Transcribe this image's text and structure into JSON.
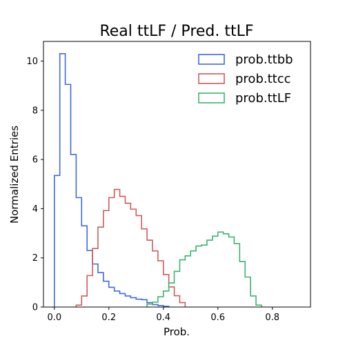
{
  "chart_data": {
    "type": "histogram",
    "title": "Real ttLF / Pred. ttLF",
    "xlabel": "Prob.",
    "ylabel": "Normalized Entries",
    "xlim": [
      -0.04,
      0.94
    ],
    "ylim": [
      0,
      10.8
    ],
    "xticks": [
      0.0,
      0.2,
      0.4,
      0.6,
      0.8
    ],
    "xtick_labels": [
      "0.0",
      "0.2",
      "0.4",
      "0.6",
      "0.8"
    ],
    "yticks": [
      0,
      2,
      4,
      6,
      8,
      10
    ],
    "ytick_labels": [
      "0",
      "2",
      "4",
      "6",
      "8",
      "10"
    ],
    "bin_width": 0.02,
    "grid": false,
    "legend_position": "top-right",
    "series": [
      {
        "name": "prob.ttbb",
        "color": "#4169e1",
        "bin_start": 0.0,
        "values": [
          5.35,
          10.3,
          9.05,
          6.2,
          4.45,
          3.3,
          2.3,
          1.75,
          1.4,
          1.05,
          0.8,
          0.65,
          0.55,
          0.45,
          0.38,
          0.32,
          0.3,
          0.18,
          0.1,
          0.06,
          0.03
        ]
      },
      {
        "name": "prob.ttcc",
        "color": "#cd5c5c",
        "bin_start": 0.08,
        "values": [
          0.08,
          0.45,
          1.28,
          2.38,
          3.25,
          3.92,
          4.45,
          4.78,
          4.5,
          4.22,
          3.98,
          3.72,
          3.18,
          2.72,
          2.28,
          1.88,
          1.32,
          0.82,
          0.46,
          0.18
        ]
      },
      {
        "name": "prob.ttLF",
        "color": "#3cb371",
        "bin_start": 0.34,
        "values": [
          0.12,
          0.2,
          0.42,
          0.65,
          0.98,
          1.45,
          1.92,
          2.08,
          2.28,
          2.48,
          2.52,
          2.72,
          2.88,
          3.05,
          2.98,
          2.85,
          2.58,
          1.85,
          1.22,
          0.45,
          0.08
        ]
      }
    ]
  }
}
